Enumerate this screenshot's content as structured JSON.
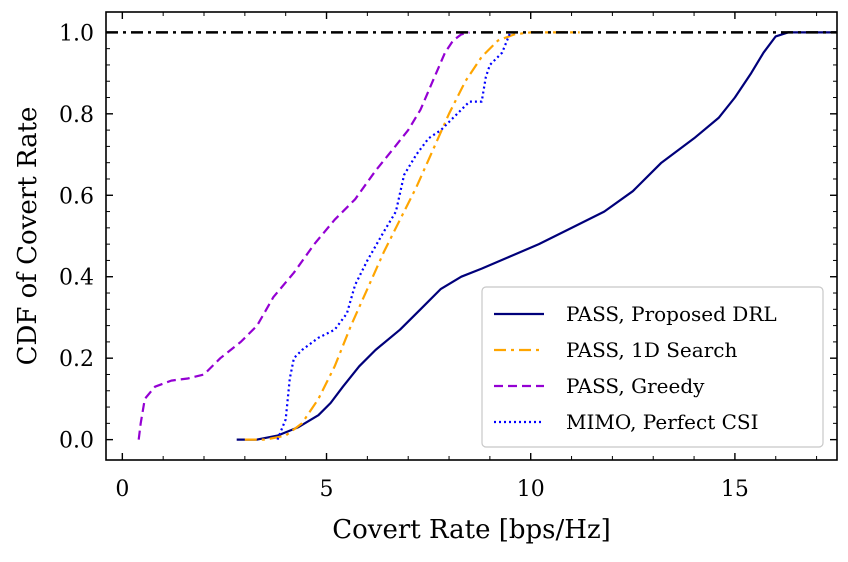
{
  "chart_data": {
    "type": "line",
    "title": "",
    "xlabel": "Covert Rate [bps/Hz]",
    "ylabel": "CDF of Covert Rate",
    "xlim": [
      -0.4,
      17.5
    ],
    "ylim": [
      -0.05,
      1.05
    ],
    "xticks": [
      0,
      5,
      10,
      15
    ],
    "yticks": [
      0.0,
      0.2,
      0.4,
      0.6,
      0.8,
      1.0
    ],
    "xtick_labels": [
      "0",
      "5",
      "10",
      "15"
    ],
    "ytick_labels": [
      "0.0",
      "0.2",
      "0.4",
      "0.6",
      "0.8",
      "1.0"
    ],
    "grid": false,
    "legend_position": "lower-right",
    "reference_line": {
      "y": 1.0,
      "color": "#000000",
      "style": "dashdot"
    },
    "series": [
      {
        "name": "PASS, Proposed DRL",
        "color": "#00007a",
        "style": "solid",
        "x": [
          2.8,
          3.3,
          3.8,
          4.3,
          4.8,
          5.1,
          5.4,
          5.8,
          6.2,
          6.8,
          7.3,
          7.8,
          8.3,
          8.8,
          9.5,
          10.2,
          11.0,
          11.8,
          12.5,
          13.2,
          14.0,
          14.6,
          15.0,
          15.4,
          15.7,
          16.0,
          16.3,
          17.5
        ],
        "values": [
          0.0,
          0.0,
          0.01,
          0.03,
          0.06,
          0.09,
          0.13,
          0.18,
          0.22,
          0.27,
          0.32,
          0.37,
          0.4,
          0.42,
          0.45,
          0.48,
          0.52,
          0.56,
          0.61,
          0.68,
          0.74,
          0.79,
          0.84,
          0.9,
          0.95,
          0.99,
          1.0,
          1.0
        ]
      },
      {
        "name": "PASS, 1D Search",
        "color": "#ffa500",
        "style": "dashdot",
        "x": [
          3.0,
          3.5,
          4.0,
          4.4,
          4.8,
          5.2,
          5.6,
          6.0,
          6.4,
          6.8,
          7.2,
          7.6,
          8.0,
          8.4,
          8.8,
          9.2,
          9.6,
          10.0,
          10.5,
          11.2
        ],
        "values": [
          0.0,
          0.0,
          0.01,
          0.04,
          0.1,
          0.18,
          0.28,
          0.37,
          0.46,
          0.54,
          0.62,
          0.71,
          0.8,
          0.88,
          0.94,
          0.98,
          0.995,
          1.0,
          1.0,
          1.0
        ]
      },
      {
        "name": "PASS, Greedy",
        "color": "#9400d3",
        "style": "dashed",
        "x": [
          0.4,
          0.45,
          0.55,
          0.8,
          1.2,
          1.6,
          2.0,
          2.4,
          2.9,
          3.3,
          3.7,
          4.2,
          4.7,
          5.2,
          5.7,
          6.2,
          6.6,
          7.0,
          7.3,
          7.6,
          7.9,
          8.1,
          8.3,
          8.5
        ],
        "values": [
          0.0,
          0.04,
          0.1,
          0.13,
          0.145,
          0.15,
          0.16,
          0.2,
          0.24,
          0.28,
          0.35,
          0.41,
          0.48,
          0.54,
          0.59,
          0.66,
          0.71,
          0.76,
          0.81,
          0.88,
          0.95,
          0.98,
          0.995,
          1.0
        ]
      },
      {
        "name": "MIMO, Perfect CSI",
        "color": "#0000ff",
        "style": "dotted",
        "x": [
          3.8,
          4.0,
          4.1,
          4.2,
          4.4,
          4.8,
          5.2,
          5.5,
          5.7,
          6.0,
          6.4,
          6.7,
          6.9,
          7.2,
          7.5,
          7.8,
          8.1,
          8.5,
          8.8,
          8.9,
          9.0,
          9.3,
          9.5
        ],
        "values": [
          0.0,
          0.05,
          0.15,
          0.2,
          0.22,
          0.25,
          0.27,
          0.31,
          0.38,
          0.44,
          0.51,
          0.56,
          0.65,
          0.7,
          0.74,
          0.76,
          0.79,
          0.83,
          0.83,
          0.89,
          0.92,
          0.95,
          1.0
        ]
      }
    ]
  }
}
